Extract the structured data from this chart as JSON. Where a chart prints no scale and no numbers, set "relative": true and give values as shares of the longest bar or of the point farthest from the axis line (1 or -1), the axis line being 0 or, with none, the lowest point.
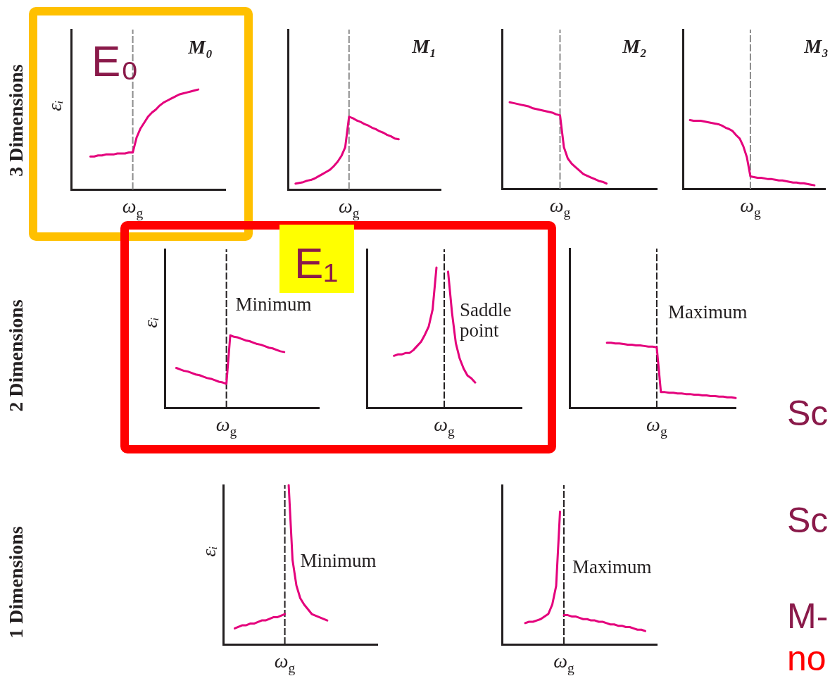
{
  "chart_data": [
    {
      "type": "line",
      "title": "M₀",
      "ylabel": "εᵢ",
      "annotations": [
        "3 Dimensions",
        "E₀",
        "ω$_{g}$"
      ],
      "relative": true,
      "categories": [
        null,
        null,
        null,
        null,
        null,
        null,
        null,
        null,
        null,
        null,
        null,
        null,
        null,
        null,
        null,
        null,
        null,
        null,
        null,
        null,
        null,
        null,
        null,
        null,
        null,
        null,
        null,
        null,
        null,
        null,
        null,
        null,
        null,
        null,
        null,
        null,
        null,
        null,
        null,
        null,
        null
      ],
      "series": [
        {
          "color": "#e4007c",
          "values": [
            null,
            null,
            null,
            null,
            null,
            0.33,
            0.33,
            0.34,
            0.34,
            0.35,
            0.35,
            0.35,
            0.36,
            0.36,
            0.36,
            0.37,
            0.37,
            0.52,
            0.61,
            0.67,
            0.73,
            0.77,
            0.8,
            0.84,
            0.87,
            0.89,
            0.91,
            0.93,
            0.95,
            0.96,
            0.97,
            0.98,
            0.99,
            1.0,
            null,
            null,
            null,
            null,
            null,
            null,
            null
          ]
        }
      ]
    },
    {
      "type": "line",
      "title": "M₁",
      "annotations": [
        "ω$_{g}$"
      ],
      "relative": true,
      "categories": [
        null,
        null,
        null,
        null,
        null,
        null,
        null,
        null,
        null,
        null,
        null,
        null,
        null,
        null,
        null,
        null,
        null,
        null,
        null,
        null,
        null,
        null,
        null,
        null,
        null,
        null,
        null,
        null,
        null,
        null,
        null,
        null,
        null,
        null,
        null,
        null,
        null,
        null,
        null,
        null,
        null
      ],
      "series": [
        {
          "color": "#e4007c",
          "values": [
            null,
            null,
            0.08,
            0.09,
            0.1,
            0.12,
            0.13,
            0.15,
            0.18,
            0.21,
            0.24,
            0.27,
            0.32,
            0.38,
            0.46,
            0.58,
            1.0,
            0.98,
            0.95,
            0.93,
            0.9,
            0.88,
            0.85,
            0.83,
            0.8,
            0.78,
            0.75,
            0.73,
            0.7,
            0.69,
            null,
            null,
            null,
            null,
            null,
            null,
            null,
            null,
            null,
            null,
            null
          ]
        }
      ]
    },
    {
      "type": "line",
      "title": "M₂",
      "annotations": [
        "ω$_{g}$"
      ],
      "relative": true,
      "categories": [
        null,
        null,
        null,
        null,
        null,
        null,
        null,
        null,
        null,
        null,
        null,
        null,
        null,
        null,
        null,
        null,
        null,
        null,
        null,
        null,
        null,
        null,
        null,
        null,
        null,
        null,
        null,
        null,
        null,
        null,
        null,
        null,
        null,
        null,
        null,
        null,
        null,
        null,
        null,
        null,
        null
      ],
      "series": [
        {
          "color": "#e4007c",
          "values": [
            null,
            null,
            1.0,
            0.99,
            0.98,
            0.97,
            0.96,
            0.95,
            0.93,
            0.92,
            0.91,
            0.9,
            0.89,
            0.88,
            0.86,
            0.85,
            0.48,
            0.35,
            0.29,
            0.25,
            0.21,
            0.17,
            0.15,
            0.13,
            0.11,
            0.09,
            0.08,
            0.06,
            null,
            null,
            null,
            null,
            null,
            null,
            null,
            null,
            null,
            null,
            null,
            null,
            null
          ]
        }
      ]
    },
    {
      "type": "line",
      "title": "M₃",
      "annotations": [
        "ω$_{g}$"
      ],
      "relative": true,
      "categories": [
        null,
        null,
        null,
        null,
        null,
        null,
        null,
        null,
        null,
        null,
        null,
        null,
        null,
        null,
        null,
        null,
        null,
        null,
        null,
        null,
        null,
        null,
        null,
        null,
        null,
        null,
        null,
        null,
        null,
        null,
        null,
        null,
        null,
        null,
        null,
        null,
        null,
        null,
        null,
        null,
        null
      ],
      "series": [
        {
          "color": "#e4007c",
          "values": [
            null,
            null,
            1.0,
            0.99,
            0.99,
            0.99,
            0.98,
            0.97,
            0.96,
            0.95,
            0.94,
            0.92,
            0.89,
            0.87,
            0.84,
            0.78,
            0.73,
            0.62,
            0.46,
            0.18,
            0.17,
            0.16,
            0.16,
            0.15,
            0.14,
            0.14,
            0.13,
            0.12,
            0.12,
            0.11,
            0.1,
            0.09,
            0.09,
            0.08,
            0.08,
            0.07,
            0.06,
            0.05,
            null,
            null,
            null
          ]
        }
      ]
    },
    {
      "type": "line",
      "ylabel": "εᵢ",
      "annotations": [
        "2 Dimensions",
        "E₁",
        "ω$_{g}$",
        "Minimum"
      ],
      "relative": true,
      "categories": [
        null,
        null,
        null,
        null,
        null,
        null,
        null,
        null,
        null,
        null,
        null,
        null,
        null,
        null,
        null,
        null,
        null,
        null,
        null,
        null,
        null,
        null,
        null,
        null,
        null,
        null,
        null,
        null,
        null,
        null,
        null,
        null,
        null,
        null,
        null,
        null,
        null,
        null,
        null,
        null,
        null
      ],
      "series": [
        {
          "color": "#e4007c",
          "values": [
            null,
            null,
            null,
            0.55,
            0.53,
            0.51,
            0.5,
            0.48,
            0.46,
            0.45,
            0.43,
            0.41,
            0.4,
            0.38,
            0.36,
            0.35,
            0.33,
            1.0,
            0.98,
            0.97,
            0.95,
            0.93,
            0.92,
            0.9,
            0.88,
            0.87,
            0.85,
            0.83,
            0.82,
            0.8,
            0.78,
            0.77,
            null,
            null,
            null,
            null,
            null,
            null,
            null,
            null,
            null
          ]
        }
      ]
    },
    {
      "type": "line",
      "annotations": [
        "ω$_{g}$",
        "Saddle point"
      ],
      "relative": true,
      "categories": [
        null,
        null,
        null,
        null,
        null,
        null,
        null,
        null,
        null,
        null,
        null,
        null,
        null,
        null,
        null,
        null,
        null,
        null,
        null,
        null,
        null,
        null,
        null,
        null,
        null,
        null,
        null,
        null,
        null,
        null,
        null,
        null,
        null,
        null,
        null,
        null,
        null,
        null,
        null,
        null,
        null
      ],
      "series": [
        {
          "color": "#e4007c",
          "values": [
            null,
            null,
            null,
            null,
            null,
            null,
            null,
            0.37,
            0.38,
            0.38,
            0.39,
            0.39,
            0.41,
            0.44,
            0.47,
            0.52,
            0.58,
            0.7,
            1.0,
            null,
            null,
            null,
            null,
            null,
            null,
            null,
            null,
            null,
            null,
            null,
            null,
            null,
            null,
            null,
            null,
            null,
            null,
            null,
            null,
            null,
            null
          ]
        },
        {
          "color": "#e4007c",
          "values": [
            null,
            null,
            null,
            null,
            null,
            null,
            null,
            null,
            null,
            null,
            null,
            null,
            null,
            null,
            null,
            null,
            null,
            null,
            null,
            null,
            null,
            0.97,
            0.68,
            0.46,
            0.35,
            0.28,
            0.23,
            0.21,
            0.18,
            null,
            null,
            null,
            null,
            null,
            null,
            null,
            null,
            null,
            null,
            null,
            null
          ]
        }
      ]
    },
    {
      "type": "line",
      "annotations": [
        "ω$_{g}$",
        "Maximum"
      ],
      "relative": true,
      "categories": [
        null,
        null,
        null,
        null,
        null,
        null,
        null,
        null,
        null,
        null,
        null,
        null,
        null,
        null,
        null,
        null,
        null,
        null,
        null,
        null,
        null,
        null,
        null,
        null,
        null,
        null,
        null,
        null,
        null,
        null,
        null,
        null,
        null,
        null,
        null,
        null,
        null,
        null,
        null,
        null,
        null
      ],
      "series": [
        {
          "color": "#e4007c",
          "values": [
            null,
            null,
            null,
            null,
            null,
            null,
            null,
            null,
            null,
            1.0,
            1.0,
            0.99,
            0.99,
            0.98,
            0.97,
            0.97,
            0.96,
            0.96,
            0.95,
            0.94,
            0.94,
            0.93,
            0.24,
            0.24,
            0.23,
            0.23,
            0.22,
            0.22,
            0.21,
            0.21,
            0.2,
            0.2,
            0.19,
            0.19,
            0.18,
            0.18,
            0.17,
            0.17,
            0.16,
            0.16,
            0.15
          ]
        }
      ]
    },
    {
      "type": "line",
      "ylabel": "εᵢ",
      "annotations": [
        "1 Dimensions",
        "ω$_{g}$",
        "Minimum"
      ],
      "relative": true,
      "categories": [
        null,
        null,
        null,
        null,
        null,
        null,
        null,
        null,
        null,
        null,
        null,
        null,
        null,
        null,
        null,
        null,
        null,
        null,
        null,
        null,
        null,
        null,
        null,
        null,
        null,
        null,
        null,
        null,
        null,
        null,
        null,
        null,
        null,
        null,
        null,
        null,
        null,
        null,
        null,
        null,
        null
      ],
      "series": [
        {
          "color": "#e4007c",
          "values": [
            null,
            null,
            null,
            0.1,
            0.11,
            0.12,
            0.12,
            0.13,
            0.13,
            0.14,
            0.15,
            0.15,
            0.16,
            0.17,
            0.17,
            0.18,
            0.19,
            null,
            null,
            null,
            null,
            null,
            null,
            null,
            null,
            null,
            null,
            null,
            null,
            null,
            null,
            null,
            null,
            null,
            null,
            null,
            null,
            null,
            null,
            null,
            null
          ]
        },
        {
          "color": "#e4007c",
          "values": [
            null,
            null,
            null,
            null,
            null,
            null,
            null,
            null,
            null,
            null,
            null,
            null,
            null,
            null,
            null,
            null,
            null,
            1.0,
            0.53,
            0.37,
            0.29,
            0.25,
            0.22,
            0.19,
            0.18,
            0.17,
            0.16,
            0.15,
            null,
            null,
            null,
            null,
            null,
            null,
            null,
            null,
            null,
            null,
            null,
            null,
            null
          ]
        }
      ]
    },
    {
      "type": "line",
      "annotations": [
        "ω$_{g}$",
        "Maximum"
      ],
      "relative": true,
      "categories": [
        null,
        null,
        null,
        null,
        null,
        null,
        null,
        null,
        null,
        null,
        null,
        null,
        null,
        null,
        null,
        null,
        null,
        null,
        null,
        null,
        null,
        null,
        null,
        null,
        null,
        null,
        null,
        null,
        null,
        null,
        null,
        null,
        null,
        null,
        null,
        null,
        null,
        null,
        null,
        null,
        null
      ],
      "series": [
        {
          "color": "#e4007c",
          "values": [
            null,
            null,
            null,
            null,
            null,
            null,
            0.16,
            0.17,
            0.17,
            0.18,
            0.19,
            0.21,
            0.23,
            0.3,
            0.44,
            1.0,
            null,
            null,
            null,
            null,
            null,
            null,
            null,
            null,
            null,
            null,
            null,
            null,
            null,
            null,
            null,
            null,
            null,
            null,
            null,
            null,
            null,
            null,
            null,
            null,
            null
          ]
        },
        {
          "color": "#e4007c",
          "values": [
            null,
            null,
            null,
            null,
            null,
            null,
            null,
            null,
            null,
            null,
            null,
            null,
            null,
            null,
            null,
            null,
            0.22,
            0.22,
            0.21,
            0.21,
            0.2,
            0.19,
            0.19,
            0.18,
            0.18,
            0.17,
            0.17,
            0.16,
            0.15,
            0.15,
            0.14,
            0.14,
            0.13,
            0.13,
            0.12,
            0.11,
            0.11,
            0.1,
            null,
            null,
            null
          ]
        }
      ]
    },
    {
      "type": "other",
      "annotations": [
        "Sc",
        "Sc",
        "M-",
        "no"
      ]
    }
  ]
}
